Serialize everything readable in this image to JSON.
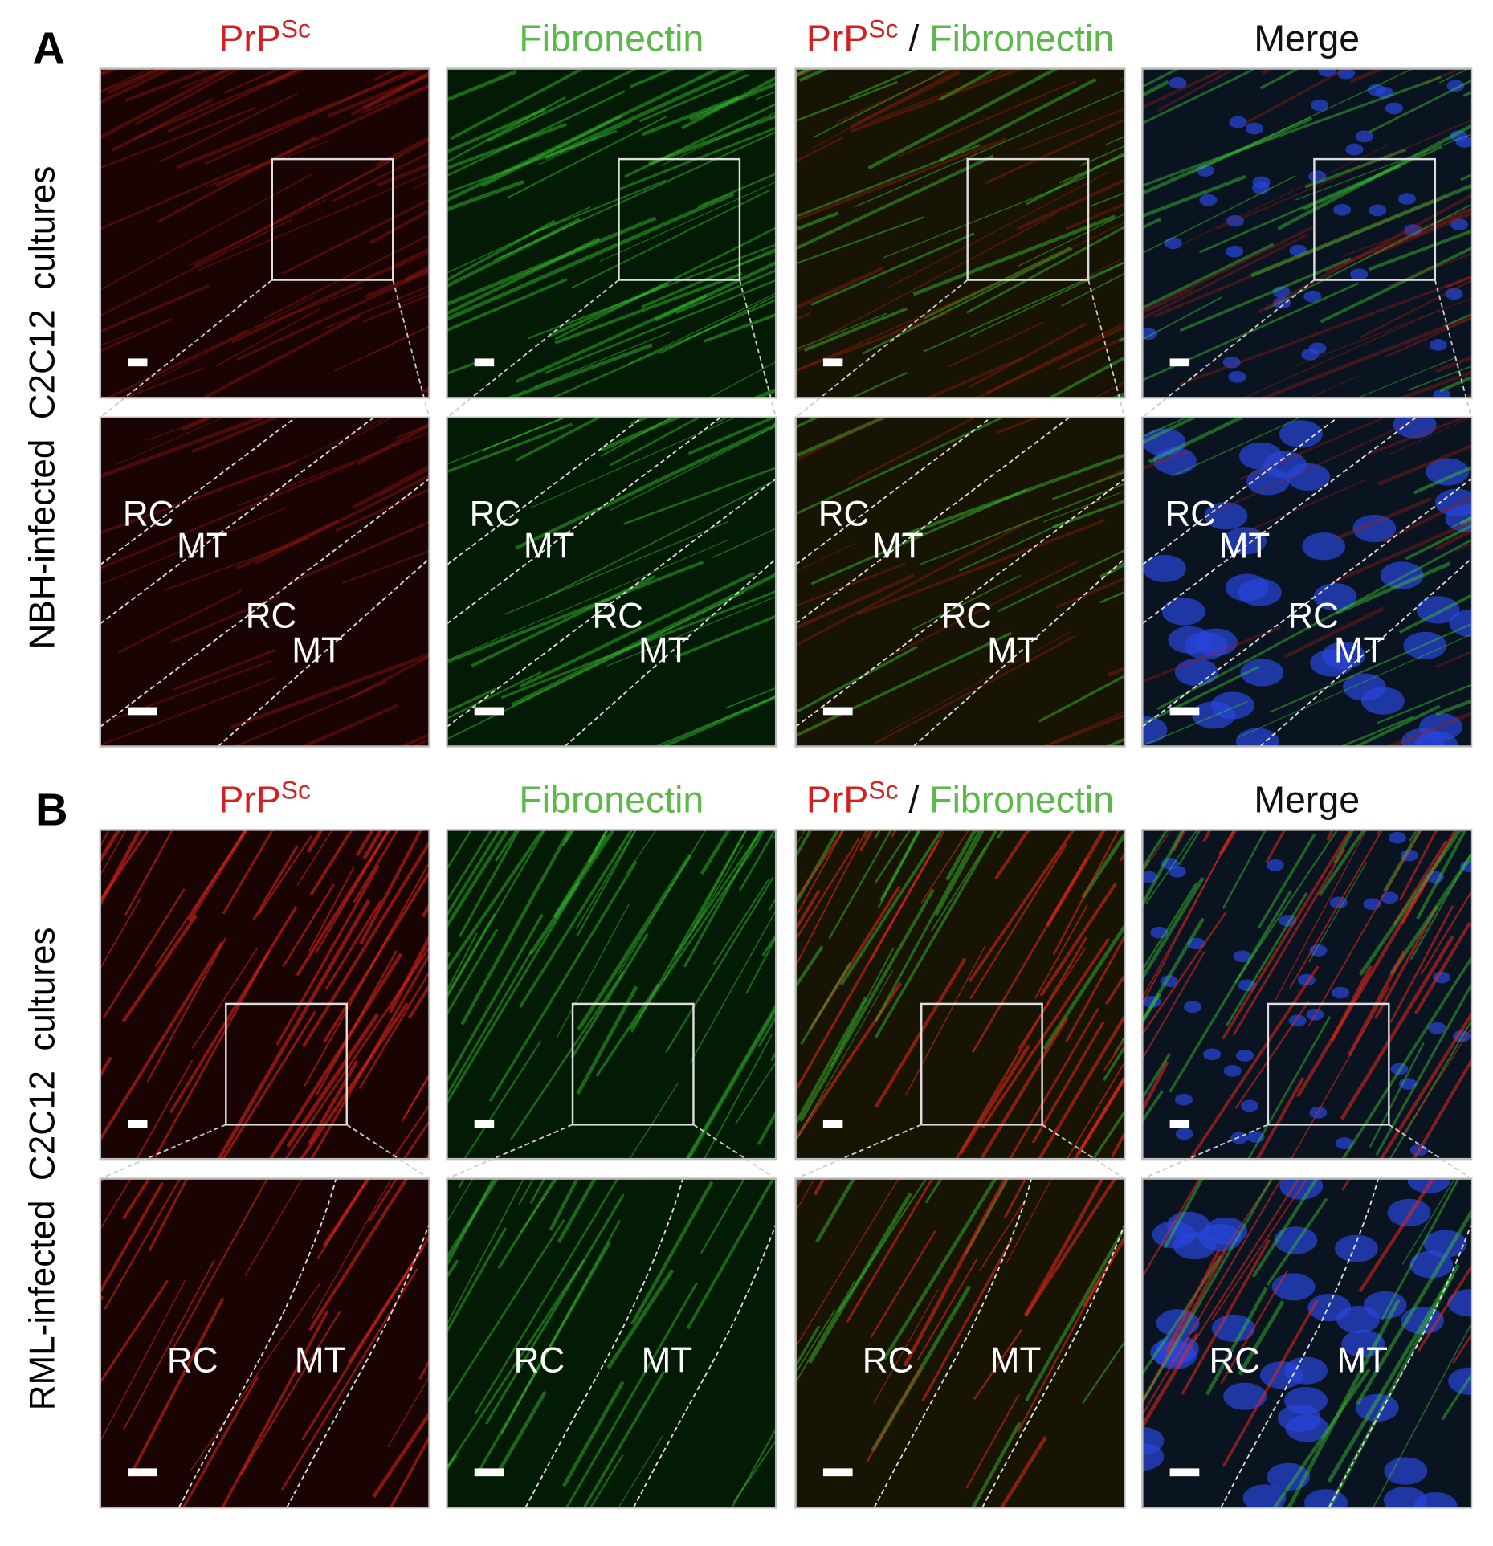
{
  "figure": {
    "panels": [
      {
        "label": "A",
        "row_label": "NBH-infected  C2C12  cultures",
        "columns": [
          [
            {
              "text": "PrP"
            },
            {
              "text": "Sc",
              "sup": true
            }
          ],
          [
            {
              "text": "Fibronectin"
            }
          ],
          [
            {
              "text": "PrP"
            },
            {
              "text": "Sc",
              "sup": true
            },
            {
              "text": " / "
            },
            {
              "text": "Fibronectin"
            }
          ],
          [
            {
              "text": "Merge"
            }
          ]
        ],
        "zoom_labels": [
          "RC",
          "MT",
          "RC",
          "MT"
        ]
      },
      {
        "label": "B",
        "row_label": "RML-infected  C2C12  cultures",
        "columns": [
          [
            {
              "text": "PrP"
            },
            {
              "text": "Sc",
              "sup": true
            }
          ],
          [
            {
              "text": "Fibronectin"
            }
          ],
          [
            {
              "text": "PrP"
            },
            {
              "text": "Sc",
              "sup": true
            },
            {
              "text": " / "
            },
            {
              "text": "Fibronectin"
            }
          ],
          [
            {
              "text": "Merge"
            }
          ]
        ],
        "zoom_labels": [
          "RC",
          "MT"
        ]
      }
    ]
  }
}
